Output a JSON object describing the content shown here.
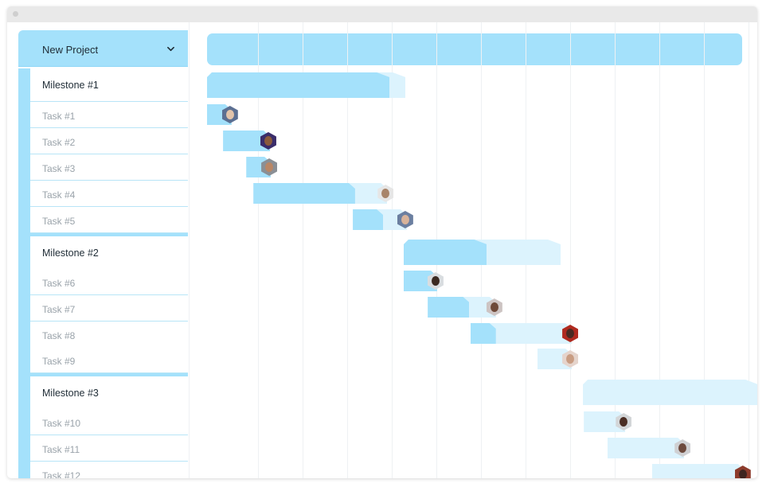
{
  "project": {
    "title": "New Project",
    "dropdown_icon": "chevron-down-icon"
  },
  "sidebar": {
    "groups": [
      {
        "milestone": "Milestone #1",
        "tasks": [
          "Task #1",
          "Task #2",
          "Task #3",
          "Task #4",
          "Task #5"
        ]
      },
      {
        "milestone": "Milestone #2",
        "tasks": [
          "Task #6",
          "Task #7",
          "Task #8",
          "Task #9"
        ]
      },
      {
        "milestone": "Milestone #3",
        "tasks": [
          "Task #10",
          "Task #11",
          "Task #12"
        ]
      }
    ]
  },
  "timeline": {
    "columns": 12,
    "colors": {
      "bar": "#a4e1fb",
      "bar_light": "#dcf3fd",
      "accent": "#a4e1fb"
    },
    "milestones": [
      {
        "name": "Milestone #1",
        "start": 0.0,
        "end": 4.45,
        "progress": 0.92
      },
      {
        "name": "Milestone #2",
        "start": 4.41,
        "end": 7.93,
        "progress": 0.53
      },
      {
        "name": "Milestone #3",
        "start": 8.43,
        "end": 12.36,
        "progress": 0.0
      }
    ],
    "tasks": [
      {
        "name": "Task #1",
        "start": 0.0,
        "end": 0.55,
        "progress": 1.0,
        "avatar": {
          "bg": "#5b6f92",
          "face": "#e1c3aa"
        }
      },
      {
        "name": "Task #2",
        "start": 0.36,
        "end": 1.41,
        "progress": 1.0,
        "avatar": {
          "bg": "#3a2d6a",
          "face": "#8a5a3c"
        }
      },
      {
        "name": "Task #3",
        "start": 0.88,
        "end": 1.43,
        "progress": 1.0,
        "avatar": {
          "bg": "#8a8f95",
          "face": "#b98665"
        }
      },
      {
        "name": "Task #4",
        "start": 1.04,
        "end": 4.04,
        "progress": 0.76,
        "avatar": {
          "bg": "#e6e6e6",
          "face": "#a88469"
        }
      },
      {
        "name": "Task #5",
        "start": 3.27,
        "end": 4.48,
        "progress": 0.56,
        "avatar": {
          "bg": "#6b7fa0",
          "face": "#d8b39a"
        }
      },
      {
        "name": "Task #6",
        "start": 4.41,
        "end": 5.16,
        "progress": 1.0,
        "avatar": {
          "bg": "#d9dde0",
          "face": "#3b2a22"
        }
      },
      {
        "name": "Task #7",
        "start": 4.95,
        "end": 6.48,
        "progress": 0.61,
        "avatar": {
          "bg": "#cdc4c3",
          "face": "#6e4a3a"
        }
      },
      {
        "name": "Task #8",
        "start": 5.91,
        "end": 8.18,
        "progress": 0.25,
        "avatar": {
          "bg": "#b02a1f",
          "face": "#4a2a22"
        }
      },
      {
        "name": "Task #9",
        "start": 7.41,
        "end": 8.18,
        "progress": 0.0,
        "avatar": {
          "bg": "#e5d4cc",
          "face": "#c99d83"
        }
      },
      {
        "name": "Task #10",
        "start": 8.45,
        "end": 9.38,
        "progress": 0.0,
        "avatar": {
          "bg": "#d3d6d8",
          "face": "#4b2e24"
        }
      },
      {
        "name": "Task #11",
        "start": 8.98,
        "end": 10.7,
        "progress": 0.0,
        "avatar": {
          "bg": "#cfd0d3",
          "face": "#6d4a3e"
        }
      },
      {
        "name": "Task #12",
        "start": 9.98,
        "end": 12.05,
        "progress": 0.0,
        "avatar": {
          "bg": "#8d3b2c",
          "face": "#3d2520"
        }
      }
    ]
  }
}
